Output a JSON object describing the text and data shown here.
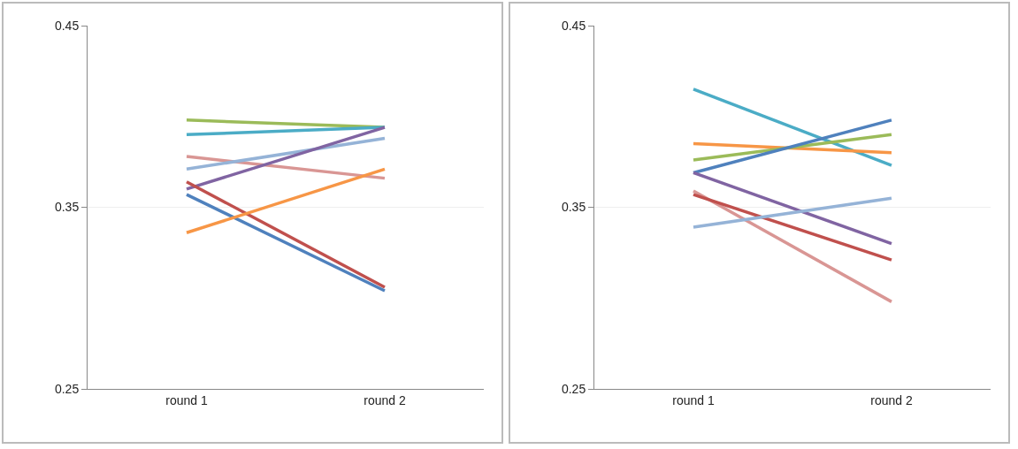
{
  "chart_data": [
    {
      "type": "line",
      "categories": [
        "round 1",
        "round 2"
      ],
      "ylim": [
        0.25,
        0.45
      ],
      "yticks": [
        0.25,
        0.35,
        0.45
      ],
      "grid": "y",
      "series": [
        {
          "color": "#9bbb59",
          "values": [
            0.398,
            0.394
          ]
        },
        {
          "color": "#4bacc6",
          "values": [
            0.39,
            0.394
          ]
        },
        {
          "color": "#d99694",
          "values": [
            0.378,
            0.366
          ]
        },
        {
          "color": "#95b3d7",
          "values": [
            0.371,
            0.388
          ]
        },
        {
          "color": "#8064a2",
          "values": [
            0.36,
            0.394
          ]
        },
        {
          "color": "#c0504d",
          "values": [
            0.364,
            0.306
          ]
        },
        {
          "color": "#4f81bd",
          "values": [
            0.357,
            0.304
          ]
        },
        {
          "color": "#f79646",
          "values": [
            0.336,
            0.371
          ]
        }
      ]
    },
    {
      "type": "line",
      "categories": [
        "round 1",
        "round 2"
      ],
      "ylim": [
        0.25,
        0.45
      ],
      "yticks": [
        0.25,
        0.35,
        0.45
      ],
      "grid": "y",
      "series": [
        {
          "color": "#4bacc6",
          "values": [
            0.415,
            0.373
          ]
        },
        {
          "color": "#f79646",
          "values": [
            0.385,
            0.38
          ]
        },
        {
          "color": "#9bbb59",
          "values": [
            0.376,
            0.39
          ]
        },
        {
          "color": "#4f81bd",
          "values": [
            0.369,
            0.398
          ]
        },
        {
          "color": "#8064a2",
          "values": [
            0.369,
            0.33
          ]
        },
        {
          "color": "#d99694",
          "values": [
            0.359,
            0.298
          ]
        },
        {
          "color": "#c0504d",
          "values": [
            0.357,
            0.321
          ]
        },
        {
          "color": "#95b3d7",
          "values": [
            0.339,
            0.355
          ]
        }
      ]
    }
  ]
}
